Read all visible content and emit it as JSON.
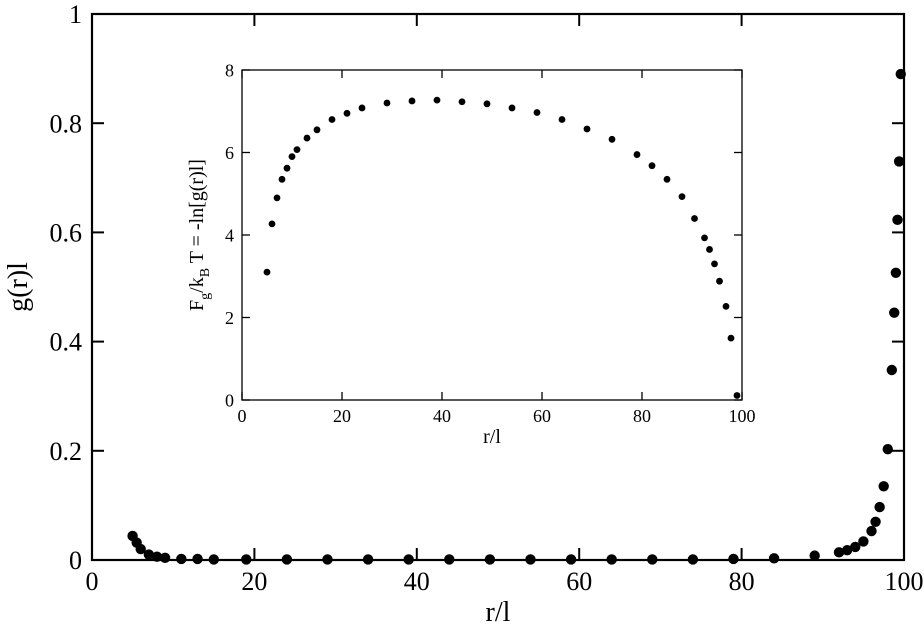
{
  "chart_data": [
    {
      "id": "main",
      "type": "scatter",
      "xlabel": "r/l",
      "ylabel": "g(r)l",
      "xlim": [
        0,
        100
      ],
      "ylim": [
        0,
        1
      ],
      "xticks": [
        0,
        20,
        40,
        60,
        80,
        100
      ],
      "yticks": [
        0,
        0.2,
        0.4,
        0.6,
        0.8,
        1
      ],
      "xtick_labels": [
        "0",
        "20",
        "40",
        "60",
        "80",
        "100"
      ],
      "ytick_labels": [
        "0",
        "0.2",
        "0.4",
        "0.6",
        "0.8",
        "1"
      ],
      "grid": false,
      "marker_color": "#000000",
      "series": [
        {
          "points": [
            [
              5,
              0.044
            ],
            [
              5.5,
              0.032
            ],
            [
              6,
              0.02
            ],
            [
              7,
              0.01
            ],
            [
              8,
              0.006
            ],
            [
              9,
              0.004
            ],
            [
              11,
              0.002
            ],
            [
              13,
              0.002
            ],
            [
              15,
              0.001
            ],
            [
              19,
              0.001
            ],
            [
              24,
              0.001
            ],
            [
              29,
              0.001
            ],
            [
              34,
              0.001
            ],
            [
              39,
              0.001
            ],
            [
              44,
              0.001
            ],
            [
              49,
              0.001
            ],
            [
              54,
              0.001
            ],
            [
              59,
              0.001
            ],
            [
              64,
              0.001
            ],
            [
              69,
              0.001
            ],
            [
              74,
              0.001
            ],
            [
              79,
              0.002
            ],
            [
              84,
              0.003
            ],
            [
              89,
              0.008
            ],
            [
              92,
              0.014
            ],
            [
              93,
              0.018
            ],
            [
              94,
              0.024
            ],
            [
              95,
              0.034
            ],
            [
              96,
              0.053
            ],
            [
              96.5,
              0.07
            ],
            [
              97,
              0.097
            ],
            [
              97.5,
              0.135
            ],
            [
              98,
              0.203
            ],
            [
              98.5,
              0.348
            ],
            [
              98.8,
              0.453
            ],
            [
              99,
              0.526
            ],
            [
              99.2,
              0.623
            ],
            [
              99.4,
              0.73
            ],
            [
              99.6,
              0.89
            ]
          ]
        }
      ]
    },
    {
      "id": "inset",
      "type": "scatter",
      "xlabel": "r/l",
      "ylabel": "F_g/k_B T = -ln[g(r)l]",
      "ylabel_parts": {
        "a": "F",
        "sub1": "g",
        "b": "/k",
        "sub2": "B",
        "c": " T = -ln[g(r)l]"
      },
      "xlim": [
        0,
        100
      ],
      "ylim": [
        0,
        8
      ],
      "xticks": [
        0,
        20,
        40,
        60,
        80,
        100
      ],
      "yticks": [
        0,
        2,
        4,
        6,
        8
      ],
      "xtick_labels": [
        "0",
        "20",
        "40",
        "60",
        "80",
        "100"
      ],
      "ytick_labels": [
        "0",
        "2",
        "4",
        "6",
        "8"
      ],
      "grid": false,
      "marker_color": "#000000",
      "series": [
        {
          "points": [
            [
              5,
              3.1
            ],
            [
              6,
              4.27
            ],
            [
              7,
              4.9
            ],
            [
              8,
              5.35
            ],
            [
              9,
              5.62
            ],
            [
              10,
              5.9
            ],
            [
              11,
              6.07
            ],
            [
              13,
              6.35
            ],
            [
              15,
              6.55
            ],
            [
              18,
              6.8
            ],
            [
              21,
              6.95
            ],
            [
              24,
              7.08
            ],
            [
              29,
              7.2
            ],
            [
              34,
              7.25
            ],
            [
              39,
              7.27
            ],
            [
              44,
              7.23
            ],
            [
              49,
              7.18
            ],
            [
              54,
              7.08
            ],
            [
              59,
              6.97
            ],
            [
              64,
              6.8
            ],
            [
              69,
              6.57
            ],
            [
              74,
              6.32
            ],
            [
              79,
              5.95
            ],
            [
              82,
              5.68
            ],
            [
              85,
              5.35
            ],
            [
              88,
              4.93
            ],
            [
              90.5,
              4.4
            ],
            [
              92.5,
              3.93
            ],
            [
              93.5,
              3.65
            ],
            [
              94.5,
              3.3
            ],
            [
              95.5,
              2.88
            ],
            [
              96.8,
              2.27
            ],
            [
              97.8,
              1.5
            ],
            [
              99,
              0.11
            ]
          ]
        }
      ]
    }
  ]
}
